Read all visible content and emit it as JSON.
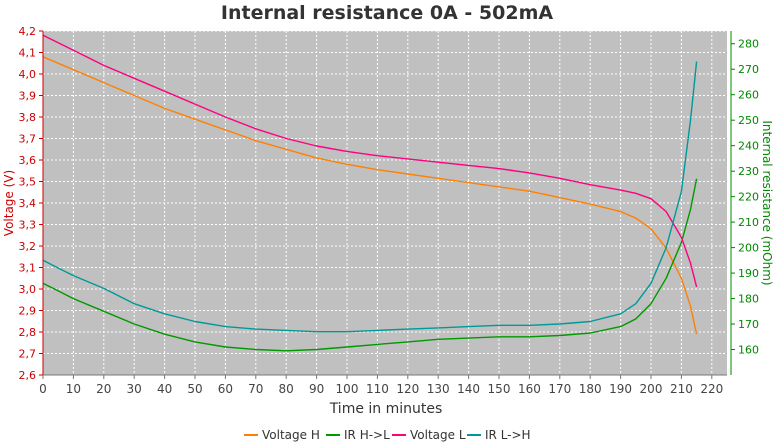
{
  "chart_data": {
    "type": "line",
    "title": "Internal resistance  0A - 502mA",
    "xlabel": "Time in minutes",
    "ylabel_left": "Voltage (V)",
    "ylabel_right": "Internal resistance (mOhm)",
    "xlim": [
      0,
      225
    ],
    "ylim_left": [
      2.6,
      4.2
    ],
    "ylim_right": [
      150,
      285
    ],
    "x_ticks": [
      "0",
      "10",
      "20",
      "30",
      "40",
      "50",
      "60",
      "70",
      "80",
      "90",
      "100",
      "110",
      "120",
      "130",
      "140",
      "150",
      "160",
      "170",
      "180",
      "190",
      "200",
      "210",
      "220"
    ],
    "y_left_ticks": [
      "2,6",
      "2,7",
      "2,8",
      "2,9",
      "3,0",
      "3,1",
      "3,2",
      "3,3",
      "3,4",
      "3,5",
      "3,6",
      "3,7",
      "3,8",
      "3,9",
      "4,0",
      "4,1",
      "4,2"
    ],
    "y_right_ticks": [
      "160",
      "170",
      "180",
      "190",
      "200",
      "210",
      "220",
      "230",
      "240",
      "250",
      "260",
      "270",
      "280"
    ],
    "grid": true,
    "legend_position": "bottom",
    "plot_background": "#c0c0c0",
    "series": [
      {
        "name": "Voltage H",
        "axis": "left",
        "color": "#ff8000",
        "points": [
          [
            0,
            4.08
          ],
          [
            10,
            4.02
          ],
          [
            20,
            3.96
          ],
          [
            30,
            3.9
          ],
          [
            40,
            3.84
          ],
          [
            50,
            3.79
          ],
          [
            60,
            3.74
          ],
          [
            70,
            3.69
          ],
          [
            80,
            3.65
          ],
          [
            90,
            3.61
          ],
          [
            100,
            3.58
          ],
          [
            110,
            3.555
          ],
          [
            120,
            3.535
          ],
          [
            130,
            3.515
          ],
          [
            140,
            3.495
          ],
          [
            150,
            3.475
          ],
          [
            160,
            3.455
          ],
          [
            170,
            3.425
          ],
          [
            180,
            3.395
          ],
          [
            190,
            3.36
          ],
          [
            195,
            3.33
          ],
          [
            200,
            3.28
          ],
          [
            205,
            3.19
          ],
          [
            210,
            3.05
          ],
          [
            213,
            2.92
          ],
          [
            215,
            2.79
          ]
        ]
      },
      {
        "name": "IR H->L",
        "axis": "right",
        "color": "#009900",
        "points": [
          [
            0,
            186
          ],
          [
            5,
            183
          ],
          [
            10,
            180
          ],
          [
            20,
            175
          ],
          [
            30,
            170
          ],
          [
            40,
            166
          ],
          [
            50,
            163
          ],
          [
            60,
            161
          ],
          [
            70,
            160
          ],
          [
            80,
            159.5
          ],
          [
            90,
            160
          ],
          [
            100,
            161
          ],
          [
            110,
            162
          ],
          [
            120,
            163
          ],
          [
            130,
            164
          ],
          [
            140,
            164.5
          ],
          [
            150,
            165
          ],
          [
            160,
            165
          ],
          [
            170,
            165.5
          ],
          [
            180,
            166.5
          ],
          [
            190,
            169
          ],
          [
            195,
            172
          ],
          [
            200,
            178
          ],
          [
            205,
            188
          ],
          [
            210,
            202
          ],
          [
            213,
            215
          ],
          [
            215,
            227
          ]
        ]
      },
      {
        "name": "Voltage L",
        "axis": "left",
        "color": "#ff0080",
        "points": [
          [
            0,
            4.18
          ],
          [
            10,
            4.11
          ],
          [
            20,
            4.04
          ],
          [
            30,
            3.98
          ],
          [
            40,
            3.92
          ],
          [
            50,
            3.86
          ],
          [
            60,
            3.8
          ],
          [
            70,
            3.745
          ],
          [
            80,
            3.7
          ],
          [
            90,
            3.665
          ],
          [
            100,
            3.64
          ],
          [
            110,
            3.62
          ],
          [
            120,
            3.605
          ],
          [
            130,
            3.59
          ],
          [
            140,
            3.575
          ],
          [
            150,
            3.56
          ],
          [
            160,
            3.54
          ],
          [
            170,
            3.515
          ],
          [
            180,
            3.485
          ],
          [
            190,
            3.46
          ],
          [
            195,
            3.445
          ],
          [
            200,
            3.42
          ],
          [
            205,
            3.36
          ],
          [
            210,
            3.24
          ],
          [
            213,
            3.12
          ],
          [
            215,
            3.01
          ]
        ]
      },
      {
        "name": "IR L->H",
        "axis": "right",
        "color": "#009999",
        "points": [
          [
            0,
            195
          ],
          [
            5,
            192
          ],
          [
            10,
            189
          ],
          [
            20,
            184
          ],
          [
            30,
            178
          ],
          [
            40,
            174
          ],
          [
            50,
            171
          ],
          [
            60,
            169
          ],
          [
            70,
            168
          ],
          [
            80,
            167.5
          ],
          [
            90,
            167
          ],
          [
            100,
            167
          ],
          [
            110,
            167.5
          ],
          [
            120,
            168
          ],
          [
            130,
            168.5
          ],
          [
            140,
            169
          ],
          [
            150,
            169.5
          ],
          [
            160,
            169.5
          ],
          [
            170,
            170
          ],
          [
            180,
            171
          ],
          [
            190,
            174
          ],
          [
            195,
            178
          ],
          [
            200,
            186
          ],
          [
            205,
            200
          ],
          [
            210,
            222
          ],
          [
            213,
            250
          ],
          [
            215,
            273
          ]
        ]
      }
    ]
  }
}
